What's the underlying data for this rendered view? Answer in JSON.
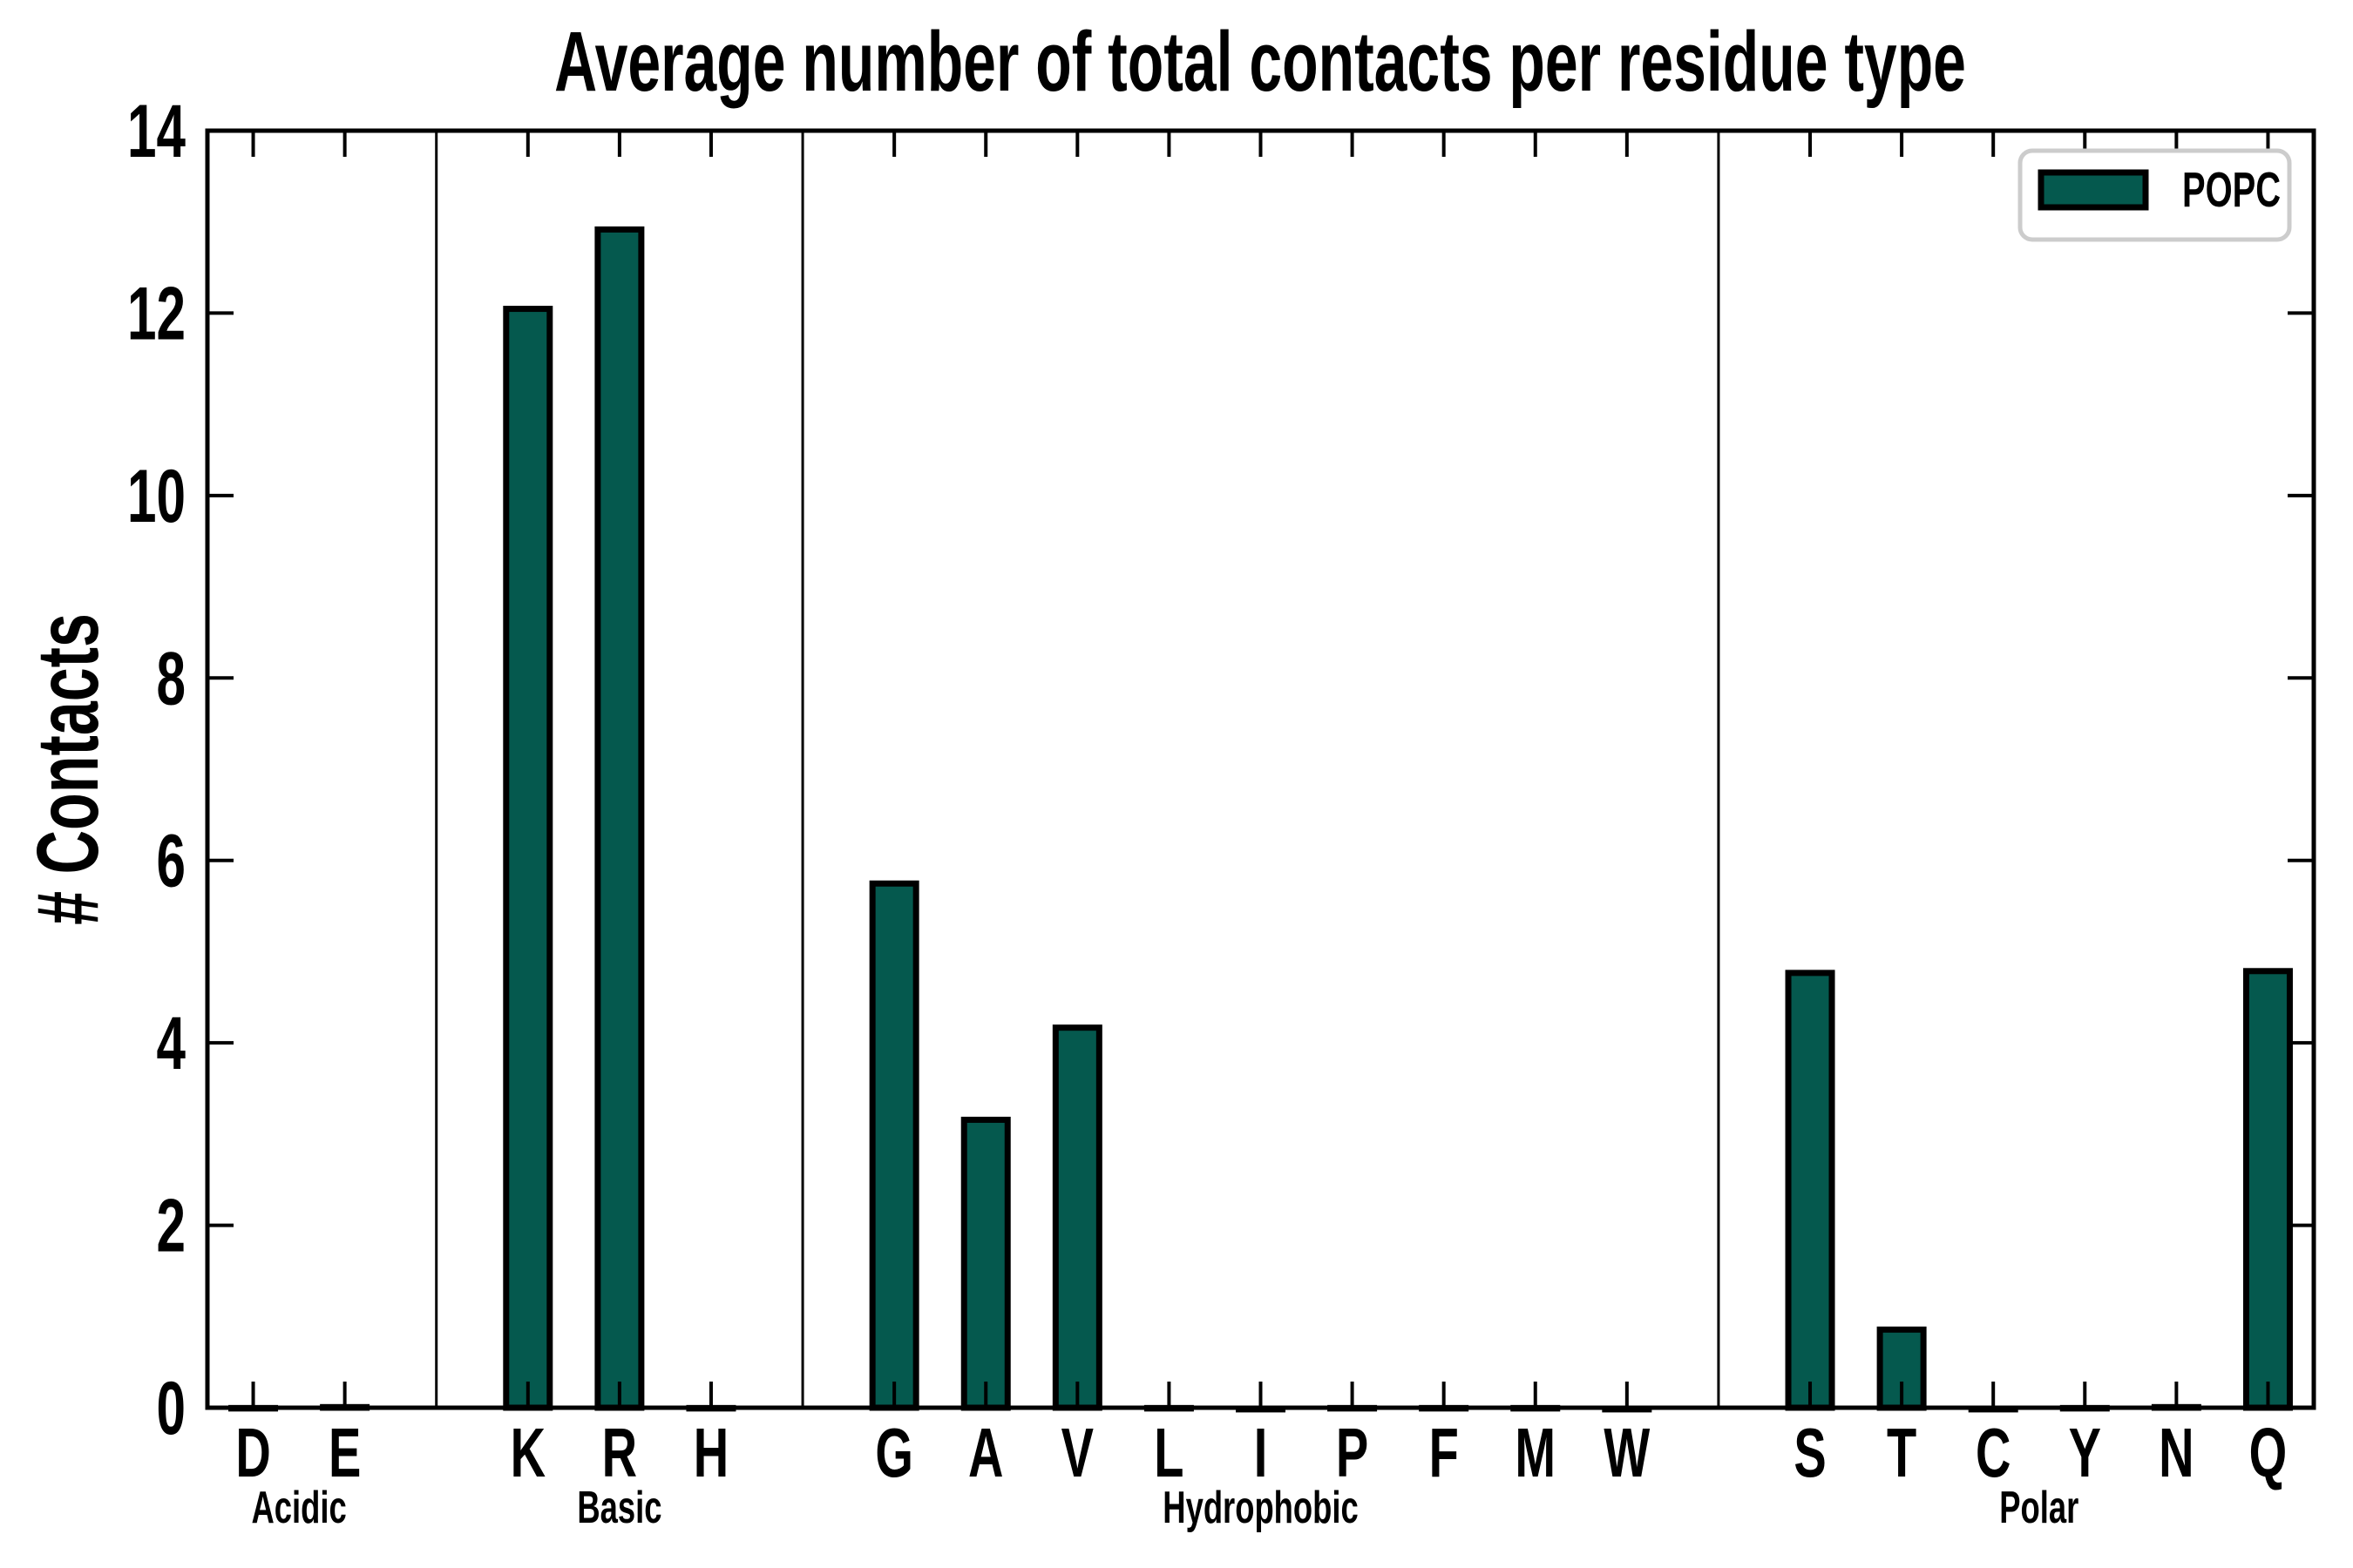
{
  "chart_data": {
    "type": "bar",
    "title": "Average number of total contacts per residue type",
    "ylabel": "# Contacts",
    "ylim": [
      0,
      14
    ],
    "yticks": [
      0,
      2,
      4,
      6,
      8,
      10,
      12,
      14
    ],
    "grid": false,
    "legend": {
      "label": "POPC",
      "position": "upper right"
    },
    "colors": {
      "bar_fill": "#05594E",
      "bar_edge": "#000000",
      "axis": "#000000",
      "legend_border": "#cccccc",
      "background": "#ffffff"
    },
    "groups": [
      {
        "label": "Acidic",
        "residues": [
          "D",
          "E"
        ],
        "values": [
          0.03,
          0.04
        ]
      },
      {
        "label": "Basic",
        "residues": [
          "K",
          "R",
          "H"
        ],
        "values": [
          12.08,
          12.95,
          0.03
        ]
      },
      {
        "label": "Hydrophobic",
        "residues": [
          "G",
          "A",
          "V",
          "L",
          "I",
          "P",
          "F",
          "M",
          "W"
        ],
        "values": [
          5.78,
          3.19,
          4.2,
          0.03,
          0.02,
          0.03,
          0.03,
          0.03,
          0.02
        ]
      },
      {
        "label": "Polar",
        "residues": [
          "S",
          "T",
          "C",
          "Y",
          "N",
          "Q"
        ],
        "values": [
          4.8,
          0.89,
          0.02,
          0.03,
          0.04,
          4.82
        ]
      }
    ]
  }
}
